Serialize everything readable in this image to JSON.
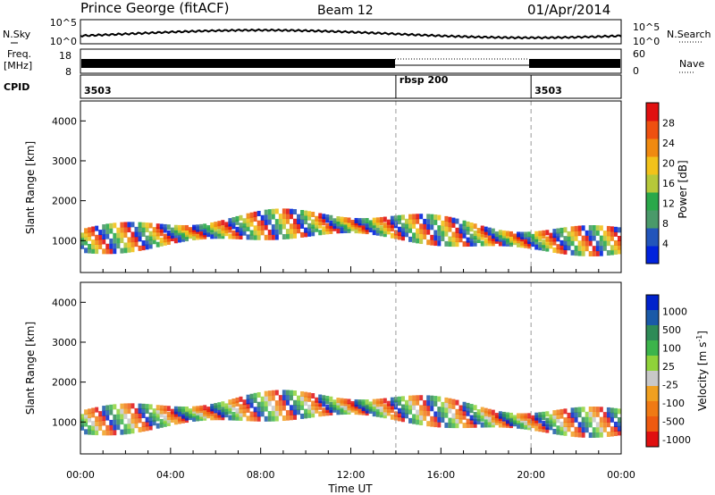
{
  "header": {
    "station": "Prince George (fitACF)",
    "beam": "Beam 12",
    "date": "01/Apr/2014"
  },
  "nsky_panel": {
    "left_label": "N.Sky",
    "right_label": "N.Search",
    "ticks_left": [
      "10^5",
      "10^0"
    ],
    "ticks_right": [
      "10^5",
      "10^0"
    ]
  },
  "freq_panel": {
    "left_label_line1": "Freq.",
    "left_label_line2": "[MHz]",
    "right_label": "Nave",
    "ticks_left": [
      "18",
      "8"
    ],
    "ticks_right": [
      "60",
      "0"
    ]
  },
  "cpid_panel": {
    "label": "CPID",
    "segments": [
      {
        "name": "3503",
        "start_h": 0,
        "end_h": 14
      },
      {
        "name": "rbsp 200",
        "start_h": 14,
        "end_h": 20
      },
      {
        "name": "3503",
        "start_h": 20,
        "end_h": 24
      }
    ]
  },
  "colors": {
    "power_scale": [
      "#0022dd",
      "#2255bb",
      "#4a9a6a",
      "#2aa84a",
      "#b6c83a",
      "#f2c21a",
      "#f08a10",
      "#ee5010",
      "#e01010"
    ],
    "velocity_scale": [
      "#0022cc",
      "#1a5aa8",
      "#2e8b57",
      "#3cb44b",
      "#8fd23a",
      "#c8c8c8",
      "#f0a020",
      "#f07a14",
      "#ee5a10",
      "#e01010"
    ]
  },
  "chart_data": [
    {
      "type": "heatmap",
      "name": "power",
      "ylabel": "Slant Range [km]",
      "ylim": [
        200,
        4500
      ],
      "y_ticks": [
        "1000",
        "2000",
        "3000",
        "4000"
      ],
      "xlim": [
        0,
        24
      ],
      "colorbar_label": "Power [dB]",
      "colorbar_ticks": [
        "4",
        "8",
        "12",
        "16",
        "20",
        "24",
        "28"
      ],
      "colorbar_range": [
        0,
        32
      ],
      "vertical_markers_h": [
        14,
        20
      ]
    },
    {
      "type": "heatmap",
      "name": "velocity",
      "ylabel": "Slant Range [km]",
      "ylim": [
        200,
        4500
      ],
      "y_ticks": [
        "1000",
        "2000",
        "3000",
        "4000"
      ],
      "xlim": [
        0,
        24
      ],
      "colorbar_label": "Velocity [m s",
      "colorbar_label_sup": "-1",
      "colorbar_label_end": "]",
      "colorbar_ticks": [
        "1000",
        "500",
        "100",
        "25",
        "-25",
        "-100",
        "-500",
        "-1000"
      ],
      "vertical_markers_h": [
        14,
        20
      ]
    }
  ],
  "time_axis": {
    "xlabel": "Time UT",
    "ticks": [
      "00:00",
      "04:00",
      "08:00",
      "12:00",
      "16:00",
      "20:00",
      "00:00"
    ]
  }
}
